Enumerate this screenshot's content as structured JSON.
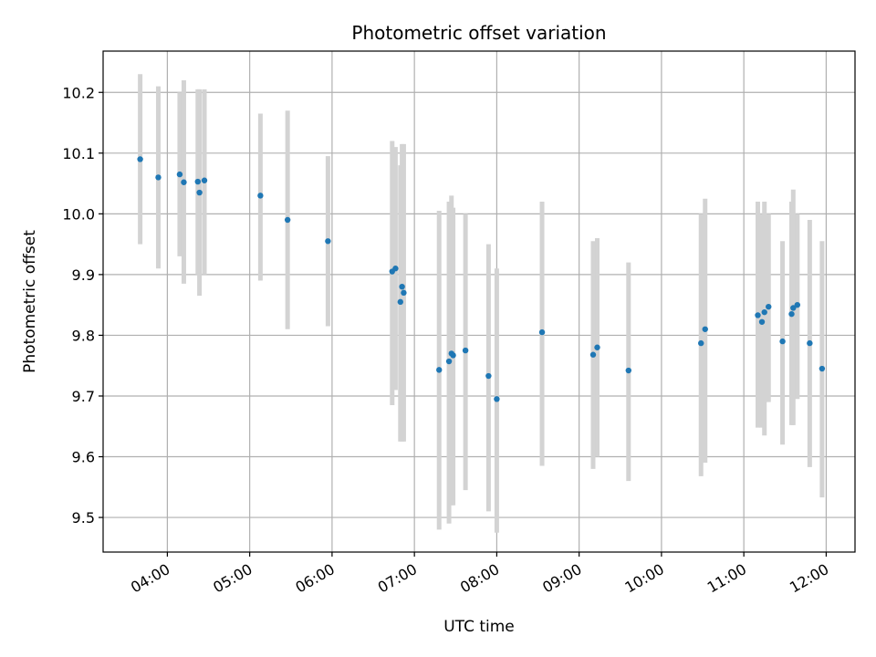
{
  "chart_data": {
    "type": "scatter",
    "title": "Photometric offset variation",
    "xlabel": "UTC time",
    "ylabel": "Photometric offset",
    "x_unit": "hours UTC",
    "xlim": [
      3.22,
      12.35
    ],
    "ylim": [
      9.443,
      10.268
    ],
    "grid": true,
    "x_ticks": [
      {
        "value": 4,
        "label": "04:00"
      },
      {
        "value": 5,
        "label": "05:00"
      },
      {
        "value": 6,
        "label": "06:00"
      },
      {
        "value": 7,
        "label": "07:00"
      },
      {
        "value": 8,
        "label": "08:00"
      },
      {
        "value": 9,
        "label": "09:00"
      },
      {
        "value": 10,
        "label": "10:00"
      },
      {
        "value": 11,
        "label": "11:00"
      },
      {
        "value": 12,
        "label": "12:00"
      }
    ],
    "y_ticks": [
      {
        "value": 9.5,
        "label": "9.5"
      },
      {
        "value": 9.6,
        "label": "9.6"
      },
      {
        "value": 9.7,
        "label": "9.7"
      },
      {
        "value": 9.8,
        "label": "9.8"
      },
      {
        "value": 9.9,
        "label": "9.9"
      },
      {
        "value": 10.0,
        "label": "10.0"
      },
      {
        "value": 10.1,
        "label": "10.1"
      },
      {
        "value": 10.2,
        "label": "10.2"
      }
    ],
    "colors": {
      "point": "#1f77b4",
      "errorbar": "#d3d3d3",
      "grid": "#b0b0b0"
    },
    "points": [
      {
        "x": 3.67,
        "y": 10.09,
        "ylo": 9.95,
        "yhi": 10.23
      },
      {
        "x": 3.89,
        "y": 10.06,
        "ylo": 9.91,
        "yhi": 10.21
      },
      {
        "x": 4.15,
        "y": 10.065,
        "ylo": 9.93,
        "yhi": 10.2
      },
      {
        "x": 4.2,
        "y": 10.052,
        "ylo": 9.885,
        "yhi": 10.22
      },
      {
        "x": 4.37,
        "y": 10.053,
        "ylo": 9.9,
        "yhi": 10.205
      },
      {
        "x": 4.39,
        "y": 10.035,
        "ylo": 9.865,
        "yhi": 10.205
      },
      {
        "x": 4.45,
        "y": 10.055,
        "ylo": 9.9,
        "yhi": 10.205
      },
      {
        "x": 5.13,
        "y": 10.03,
        "ylo": 9.89,
        "yhi": 10.165
      },
      {
        "x": 5.46,
        "y": 9.99,
        "ylo": 9.81,
        "yhi": 10.17
      },
      {
        "x": 5.95,
        "y": 9.955,
        "ylo": 9.815,
        "yhi": 10.095
      },
      {
        "x": 6.73,
        "y": 9.905,
        "ylo": 9.685,
        "yhi": 10.12
      },
      {
        "x": 6.77,
        "y": 9.91,
        "ylo": 9.71,
        "yhi": 10.11
      },
      {
        "x": 6.83,
        "y": 9.855,
        "ylo": 9.625,
        "yhi": 10.08
      },
      {
        "x": 6.85,
        "y": 9.88,
        "ylo": 9.625,
        "yhi": 10.115
      },
      {
        "x": 6.87,
        "y": 9.87,
        "ylo": 9.625,
        "yhi": 10.115
      },
      {
        "x": 7.3,
        "y": 9.743,
        "ylo": 9.48,
        "yhi": 10.005
      },
      {
        "x": 7.42,
        "y": 9.757,
        "ylo": 9.49,
        "yhi": 10.02
      },
      {
        "x": 7.45,
        "y": 9.77,
        "ylo": 9.52,
        "yhi": 10.03
      },
      {
        "x": 7.47,
        "y": 9.767,
        "ylo": 9.52,
        "yhi": 10.01
      },
      {
        "x": 7.62,
        "y": 9.775,
        "ylo": 9.545,
        "yhi": 10.0
      },
      {
        "x": 7.9,
        "y": 9.733,
        "ylo": 9.51,
        "yhi": 9.95
      },
      {
        "x": 8.0,
        "y": 9.695,
        "ylo": 9.475,
        "yhi": 9.91
      },
      {
        "x": 8.55,
        "y": 9.805,
        "ylo": 9.585,
        "yhi": 10.02
      },
      {
        "x": 9.17,
        "y": 9.768,
        "ylo": 9.58,
        "yhi": 9.955
      },
      {
        "x": 9.22,
        "y": 9.78,
        "ylo": 9.6,
        "yhi": 9.96
      },
      {
        "x": 9.6,
        "y": 9.742,
        "ylo": 9.56,
        "yhi": 9.92
      },
      {
        "x": 10.48,
        "y": 9.787,
        "ylo": 9.568,
        "yhi": 10.0
      },
      {
        "x": 10.53,
        "y": 9.81,
        "ylo": 9.59,
        "yhi": 10.025
      },
      {
        "x": 11.17,
        "y": 9.833,
        "ylo": 9.648,
        "yhi": 10.02
      },
      {
        "x": 11.22,
        "y": 9.822,
        "ylo": 9.648,
        "yhi": 10.0
      },
      {
        "x": 11.25,
        "y": 9.838,
        "ylo": 9.635,
        "yhi": 10.02
      },
      {
        "x": 11.3,
        "y": 9.847,
        "ylo": 9.69,
        "yhi": 10.0
      },
      {
        "x": 11.47,
        "y": 9.79,
        "ylo": 9.62,
        "yhi": 9.955
      },
      {
        "x": 11.58,
        "y": 9.835,
        "ylo": 9.652,
        "yhi": 10.02
      },
      {
        "x": 11.6,
        "y": 9.845,
        "ylo": 9.652,
        "yhi": 10.04
      },
      {
        "x": 11.65,
        "y": 9.85,
        "ylo": 9.695,
        "yhi": 10.0
      },
      {
        "x": 11.8,
        "y": 9.787,
        "ylo": 9.583,
        "yhi": 9.99
      },
      {
        "x": 11.95,
        "y": 9.745,
        "ylo": 9.533,
        "yhi": 9.955
      }
    ]
  }
}
